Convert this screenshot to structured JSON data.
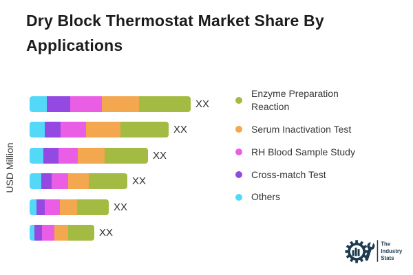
{
  "title": "Dry Block Thermostat Market Share By Applications",
  "ylabel": "USD Million",
  "colors": {
    "enzyme_green": "#A3BB42",
    "serum_orange": "#F3A74F",
    "rh_magenta": "#E95EE5",
    "cross_purple": "#9449E2",
    "others_cyan": "#53D8F7",
    "title_text": "#1c1c1c",
    "logo_navy": "#1C3B50"
  },
  "legend": [
    {
      "label": "Enzyme Preparation Reaction",
      "color": "#A3BB42"
    },
    {
      "label": "Serum Inactivation Test",
      "color": "#F3A74F"
    },
    {
      "label": "RH Blood Sample Study",
      "color": "#E95EE5"
    },
    {
      "label": "Cross-match Test",
      "color": "#9449E2"
    },
    {
      "label": "Others",
      "color": "#53D8F7"
    }
  ],
  "chart_data": {
    "type": "bar",
    "orientation": "horizontal",
    "stacked": true,
    "title": "Dry Block Thermostat Market Share By Applications",
    "ylabel": "USD Million",
    "value_label_masked": "XX",
    "legend_position": "right",
    "grid": false,
    "segment_order": [
      "Others",
      "Cross-match Test",
      "RH Blood Sample Study",
      "Serum Inactivation Test",
      "Enzyme Preparation Reaction"
    ],
    "segment_colors": [
      "#53D8F7",
      "#9449E2",
      "#E95EE5",
      "#F3A74F",
      "#A3BB42"
    ],
    "rows": [
      {
        "segments": [
          25,
          34,
          46,
          54,
          75
        ],
        "total": 234,
        "value_label": "XX"
      },
      {
        "segments": [
          22,
          23,
          37,
          50,
          70
        ],
        "total": 202,
        "value_label": "XX"
      },
      {
        "segments": [
          20,
          22,
          28,
          39,
          63
        ],
        "total": 172,
        "value_label": "XX"
      },
      {
        "segments": [
          17,
          15,
          24,
          30,
          56
        ],
        "total": 142,
        "value_label": "XX"
      },
      {
        "segments": [
          10,
          12,
          22,
          25,
          46
        ],
        "total": 115,
        "value_label": "XX"
      },
      {
        "segments": [
          7,
          11,
          18,
          20,
          38
        ],
        "total": 94,
        "value_label": "XX"
      }
    ]
  },
  "logo": {
    "text_lines": [
      "The",
      "Industry",
      "Stats"
    ]
  }
}
